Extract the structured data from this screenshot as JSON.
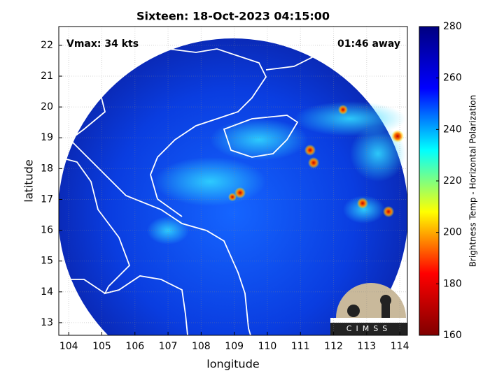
{
  "chart_data": {
    "type": "image-map",
    "title": "Sixteen: 18-Oct-2023 04:15:00",
    "x_label": "longitude",
    "y_label": "latitude",
    "xlim": [
      103.7,
      114.23
    ],
    "ylim": [
      12.59,
      22.61
    ],
    "xticks": [
      104,
      105,
      106,
      107,
      108,
      109,
      110,
      111,
      112,
      113,
      114
    ],
    "yticks": [
      13,
      14,
      15,
      16,
      17,
      18,
      19,
      20,
      21,
      22
    ],
    "grid": true,
    "annotations": [
      "Vmax: 34 kts",
      "01:46 away"
    ],
    "logo": "CIMSS",
    "colorbar": {
      "label": "Brightness Temp - Horizontal Polarization",
      "lim": [
        160,
        280
      ],
      "ticks": [
        160,
        180,
        200,
        220,
        240,
        260,
        280
      ],
      "colormap": [
        "#800000",
        "#ff0000",
        "#ffff00",
        "#00ffff",
        "#0000ff",
        "#000080"
      ]
    }
  }
}
